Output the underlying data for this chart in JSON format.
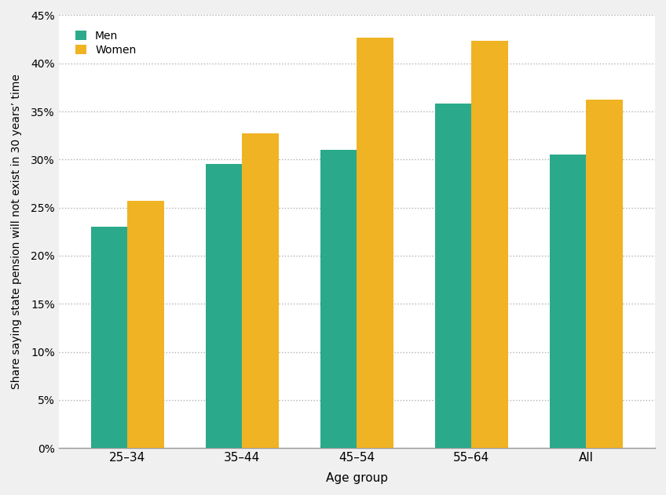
{
  "categories": [
    "25–34",
    "35–44",
    "45–54",
    "55–64",
    "All"
  ],
  "men_values": [
    0.23,
    0.295,
    0.31,
    0.358,
    0.305
  ],
  "women_values": [
    0.257,
    0.327,
    0.427,
    0.423,
    0.362
  ],
  "men_color": "#2aaa8a",
  "women_color": "#f0b323",
  "xlabel": "Age group",
  "ylabel": "Share saying state pension will not exist in 30 years’ time",
  "ylim": [
    0,
    0.45
  ],
  "yticks": [
    0.0,
    0.05,
    0.1,
    0.15,
    0.2,
    0.25,
    0.3,
    0.35,
    0.4,
    0.45
  ],
  "legend_men": "Men",
  "legend_women": "Women",
  "bar_width": 0.32,
  "figure_bg": "#f0f0f0",
  "axes_bg": "#ffffff",
  "grid_color": "#b0b0b0",
  "spine_color": "#999999"
}
